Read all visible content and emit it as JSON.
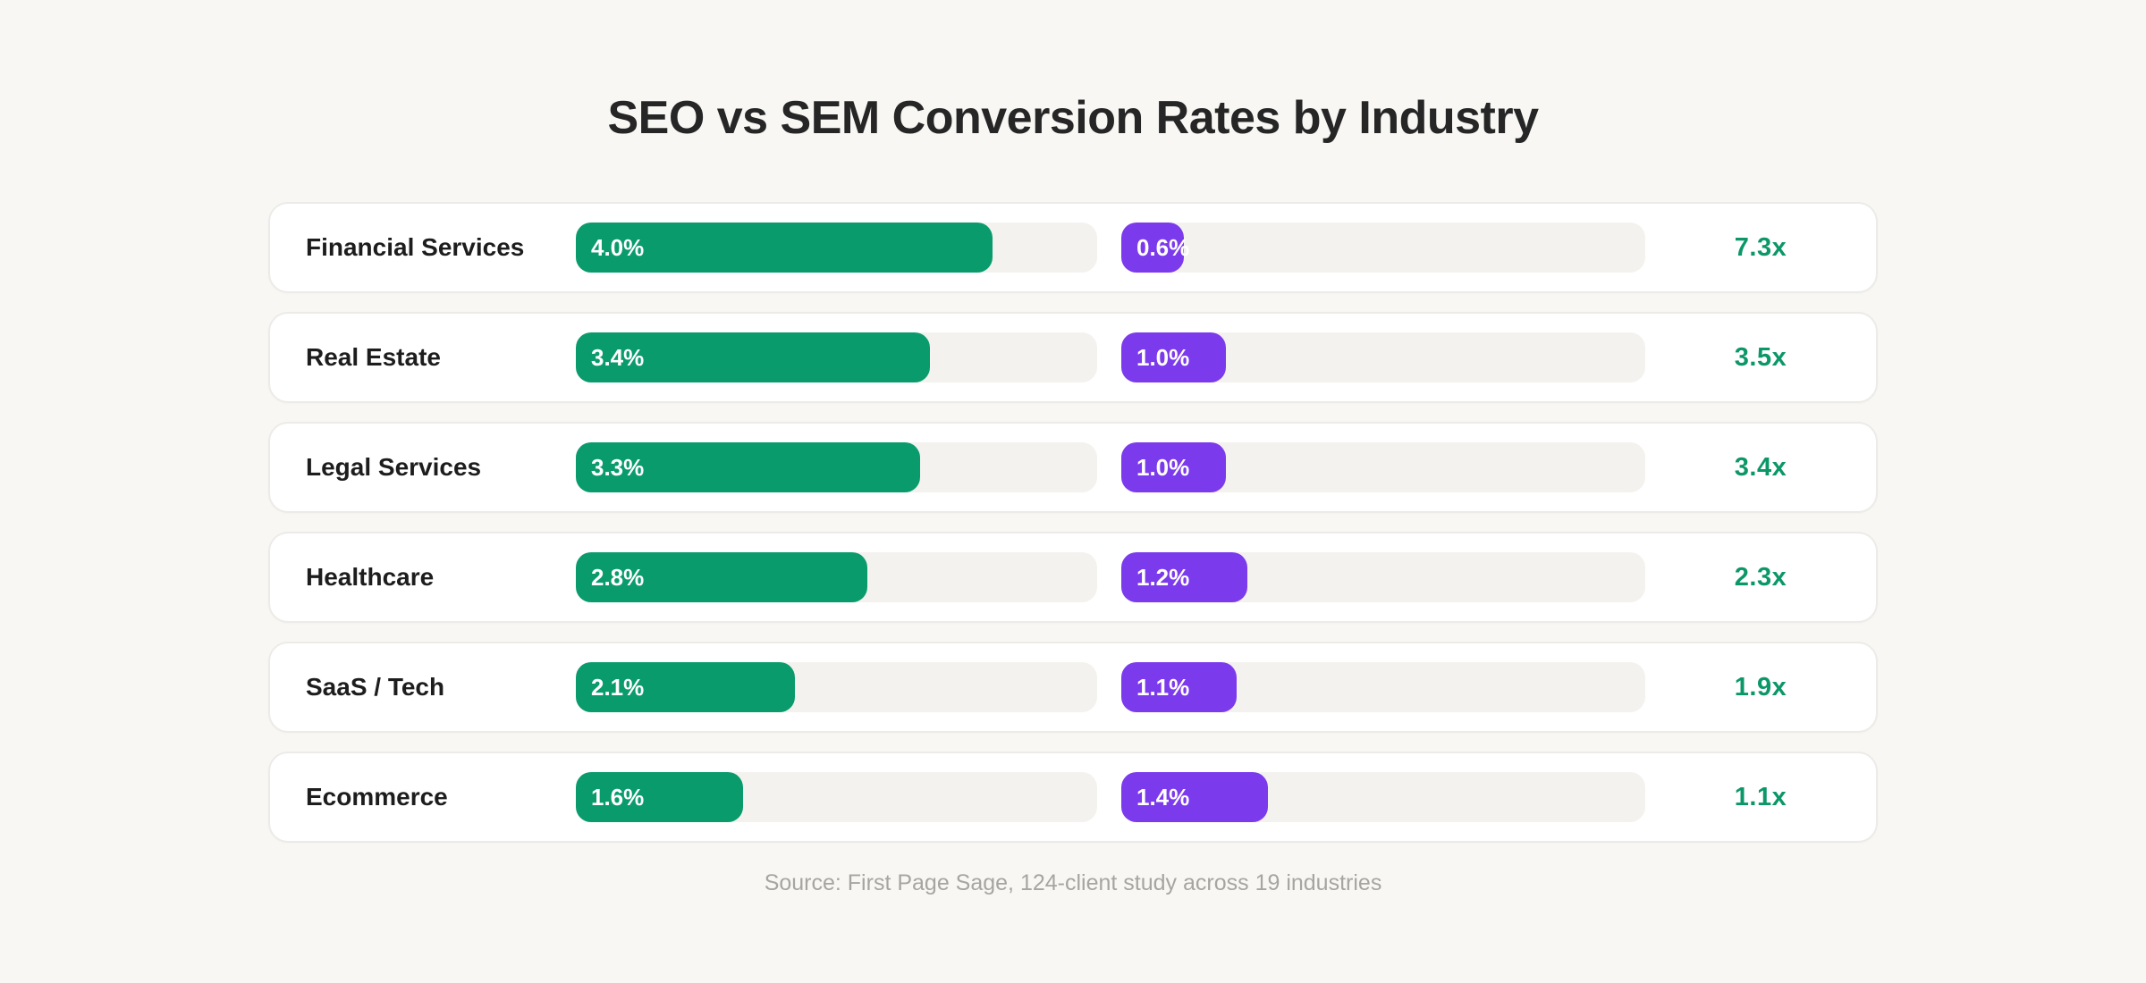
{
  "title": "SEO vs SEM Conversion Rates by Industry",
  "source_note": "Source: First Page Sage, 124-client study across 19 industries",
  "colors": {
    "background": "#f8f7f4",
    "card": "#ffffff",
    "card_border": "#ecebe8",
    "track": "#f3f2ef",
    "seo_bar": "#0a9b6c",
    "sem_bar": "#7c3aed",
    "multiplier_text": "#0c9768",
    "title_text": "#262626",
    "source_text": "#a7a5a1"
  },
  "chart_data": {
    "type": "bar",
    "title": "SEO vs SEM Conversion Rates by Industry",
    "categories": [
      "Financial Services",
      "Real Estate",
      "Legal Services",
      "Healthcare",
      "SaaS / Tech",
      "Ecommerce"
    ],
    "series": [
      {
        "name": "SEO",
        "values": [
          4.0,
          3.4,
          3.3,
          2.8,
          2.1,
          1.6
        ]
      },
      {
        "name": "SEM",
        "values": [
          0.6,
          1.0,
          1.0,
          1.2,
          1.1,
          1.4
        ]
      }
    ],
    "unit": "%",
    "xlim": [
      0,
      5
    ],
    "value_labels_seo": [
      "4.0%",
      "3.4%",
      "3.3%",
      "2.8%",
      "2.1%",
      "1.6%"
    ],
    "value_labels_sem": [
      "0.6%",
      "1.0%",
      "1.0%",
      "1.2%",
      "1.1%",
      "1.4%"
    ],
    "multipliers": [
      "7.3x",
      "3.5x",
      "3.4x",
      "2.3x",
      "1.9x",
      "1.1x"
    ],
    "legend": "none",
    "grid": false,
    "source": "Source: First Page Sage, 124-client study across 19 industries"
  },
  "rows": [
    {
      "industry": "Financial Services",
      "seo_value": 4.0,
      "seo_label": "4.0%",
      "sem_value": 0.6,
      "sem_label": "0.6%",
      "multiplier": "7.3x"
    },
    {
      "industry": "Real Estate",
      "seo_value": 3.4,
      "seo_label": "3.4%",
      "sem_value": 1.0,
      "sem_label": "1.0%",
      "multiplier": "3.5x"
    },
    {
      "industry": "Legal Services",
      "seo_value": 3.3,
      "seo_label": "3.3%",
      "sem_value": 1.0,
      "sem_label": "1.0%",
      "multiplier": "3.4x"
    },
    {
      "industry": "Healthcare",
      "seo_value": 2.8,
      "seo_label": "2.8%",
      "sem_value": 1.2,
      "sem_label": "1.2%",
      "multiplier": "2.3x"
    },
    {
      "industry": "SaaS / Tech",
      "seo_value": 2.1,
      "seo_label": "2.1%",
      "sem_value": 1.1,
      "sem_label": "1.1%",
      "multiplier": "1.9x"
    },
    {
      "industry": "Ecommerce",
      "seo_value": 1.6,
      "seo_label": "1.6%",
      "sem_value": 1.4,
      "sem_label": "1.4%",
      "multiplier": "1.1x"
    }
  ]
}
